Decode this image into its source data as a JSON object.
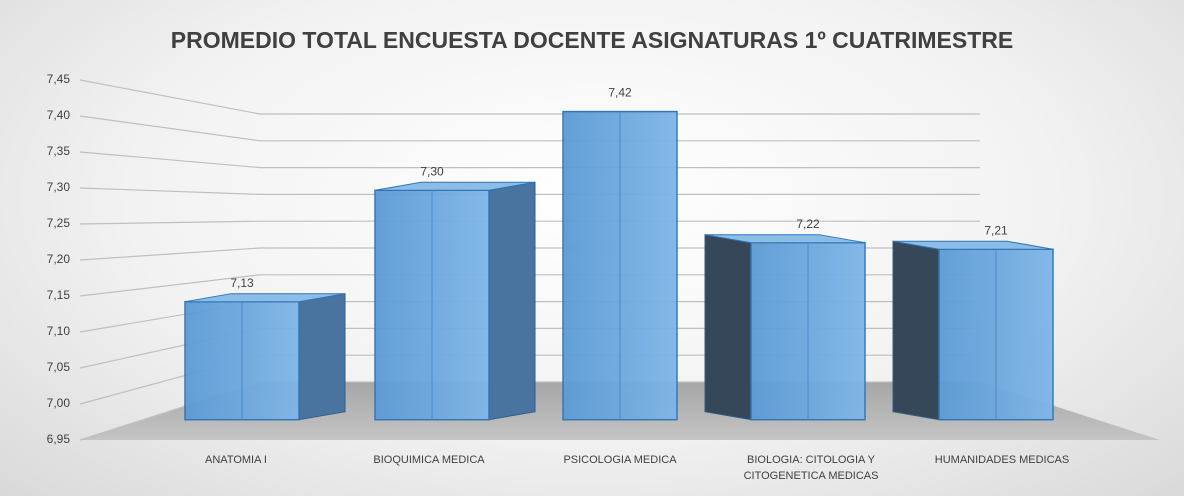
{
  "chart_data": {
    "type": "bar3d",
    "title": "PROMEDIO TOTAL ENCUESTA DOCENTE ASIGNATURAS 1º CUATRIMESTRE",
    "categories": [
      "ANATOMIA I",
      "BIOQUIMICA MEDICA",
      "PSICOLOGIA MEDICA",
      "BIOLOGIA: CITOLOGIA Y CITOGENETICA MEDICAS",
      "HUMANIDADES MEDICAS"
    ],
    "values": [
      7.13,
      7.3,
      7.42,
      7.22,
      7.21
    ],
    "value_labels": [
      "7,13",
      "7,30",
      "7,42",
      "7,22",
      "7,21"
    ],
    "color": "#5b9bd5",
    "ylim": [
      6.95,
      7.45
    ],
    "yticks": [
      {
        "value": 6.95,
        "label": "6,95"
      },
      {
        "value": 7.0,
        "label": "7,00"
      },
      {
        "value": 7.05,
        "label": "7,05"
      },
      {
        "value": 7.1,
        "label": "7,10"
      },
      {
        "value": 7.15,
        "label": "7,15"
      },
      {
        "value": 7.2,
        "label": "7,20"
      },
      {
        "value": 7.25,
        "label": "7,25"
      },
      {
        "value": 7.3,
        "label": "7,30"
      },
      {
        "value": 7.35,
        "label": "7,35"
      },
      {
        "value": 7.4,
        "label": "7,40"
      },
      {
        "value": 7.45,
        "label": "7,45"
      }
    ],
    "grid": true
  }
}
